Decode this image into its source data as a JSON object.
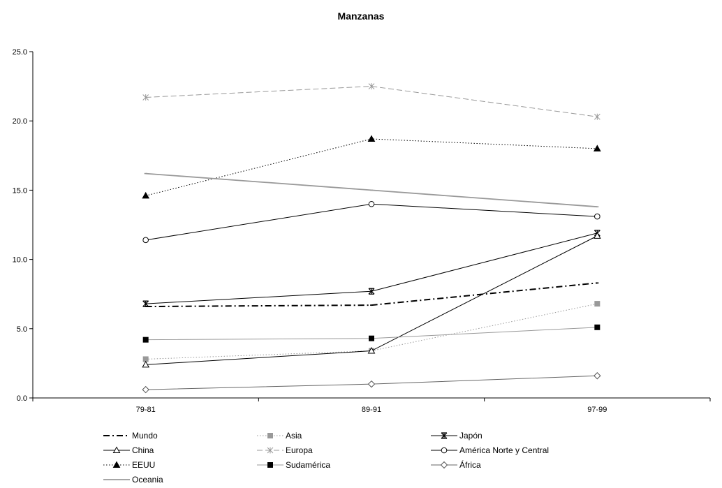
{
  "chart_data": {
    "type": "line",
    "title": "Manzanas",
    "xlabel": "",
    "ylabel": "",
    "categories": [
      "79-81",
      "89-91",
      "97-99"
    ],
    "ylim": [
      0,
      25
    ],
    "yticks": [
      "0.0",
      "5.0",
      "10.0",
      "15.0",
      "20.0",
      "25.0"
    ],
    "grid": false,
    "legend_position": "bottom",
    "series": [
      {
        "name": "Mundo",
        "values": [
          6.6,
          6.7,
          8.3
        ],
        "color": "#000000",
        "dash": "dashdot",
        "marker": "none"
      },
      {
        "name": "Asia",
        "values": [
          2.8,
          3.4,
          6.8
        ],
        "color": "#999999",
        "dash": "dotted",
        "marker": "square"
      },
      {
        "name": "Japón",
        "values": [
          6.8,
          7.7,
          11.9
        ],
        "color": "#000000",
        "dash": "solid",
        "marker": "star"
      },
      {
        "name": "China",
        "values": [
          2.4,
          3.4,
          11.7
        ],
        "color": "#000000",
        "dash": "solid",
        "marker": "triangle-open"
      },
      {
        "name": "Europa",
        "values": [
          21.7,
          22.5,
          20.3
        ],
        "color": "#999999",
        "dash": "dashed",
        "marker": "asterisk"
      },
      {
        "name": "América Norte y Central",
        "values": [
          11.4,
          14.0,
          13.1
        ],
        "color": "#000000",
        "dash": "solid",
        "marker": "circle-open"
      },
      {
        "name": "EEUU",
        "values": [
          14.6,
          18.7,
          18.0
        ],
        "color": "#000000",
        "dash": "dotted",
        "marker": "triangle"
      },
      {
        "name": "Sudamérica",
        "values": [
          4.2,
          4.3,
          5.1
        ],
        "color": "#999999",
        "dash": "solid",
        "marker": "square-black"
      },
      {
        "name": "África",
        "values": [
          0.6,
          1.0,
          1.6
        ],
        "color": "#666666",
        "dash": "solid",
        "marker": "diamond-open"
      },
      {
        "name": "Oceania",
        "values": [
          16.2,
          15.0,
          13.8
        ],
        "color": "#999999",
        "dash": "solid-thick",
        "marker": "none"
      }
    ]
  }
}
